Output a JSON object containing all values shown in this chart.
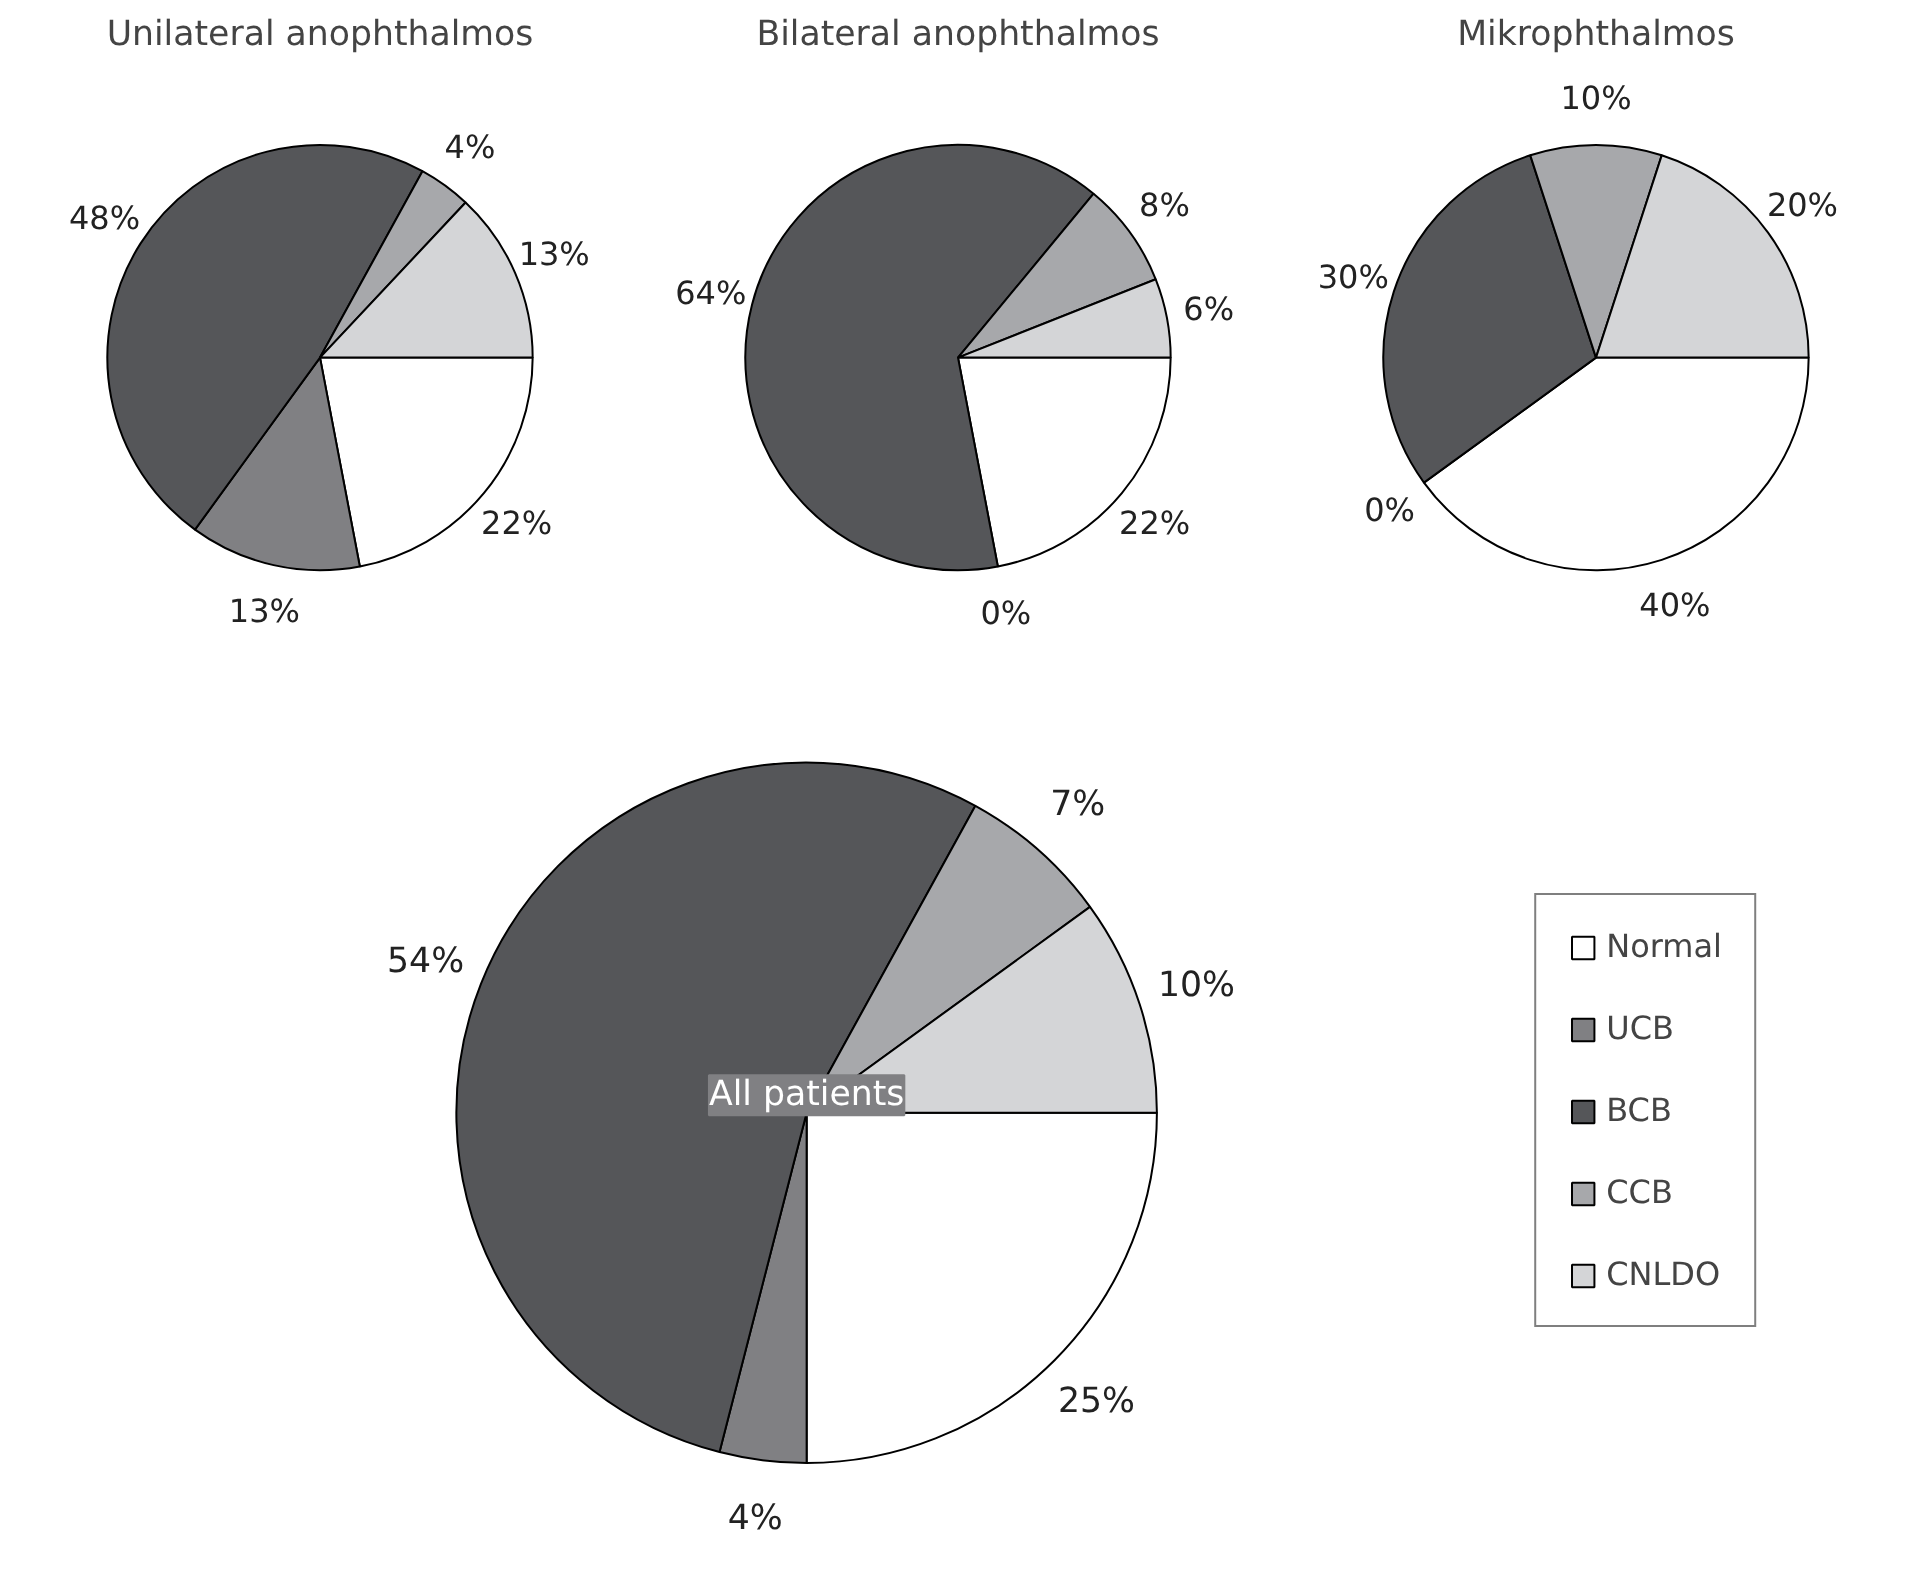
{
  "chart_data": [
    {
      "type": "pie",
      "title": "Unilateral anophthalmos",
      "categories": [
        null,
        null,
        null,
        null,
        null
      ],
      "values": [
        22,
        13,
        48,
        4,
        13
      ],
      "value_labels": [
        "22%",
        "13%",
        "48%",
        "4%",
        "13%"
      ],
      "colors": [
        "#ffffff",
        "#808083",
        "#555659",
        "#a7a8ab",
        "#d4d5d7"
      ]
    },
    {
      "type": "pie",
      "title": "Bilateral anophthalmos",
      "categories": [
        null,
        null,
        null,
        null,
        null
      ],
      "values": [
        22,
        0,
        64,
        8,
        6
      ],
      "value_labels": [
        "22%",
        "0%",
        "64%",
        "8%",
        "6%"
      ],
      "colors": [
        "#ffffff",
        "#808083",
        "#555659",
        "#a7a8ab",
        "#d4d5d7"
      ]
    },
    {
      "type": "pie",
      "title": "Mikrophthalmos",
      "categories": [
        null,
        null,
        null,
        null,
        null
      ],
      "values": [
        40,
        0,
        30,
        10,
        20
      ],
      "value_labels": [
        "40%",
        "0%",
        "30%",
        "10%",
        "20%"
      ],
      "colors": [
        "#ffffff",
        "#808083",
        "#555659",
        "#a7a8ab",
        "#d4d5d7"
      ]
    },
    {
      "type": "pie",
      "title": "All patients",
      "categories": [
        "Normal",
        "UCB",
        "BCB",
        "CCB",
        "CNLDO"
      ],
      "values": [
        25,
        4,
        54,
        7,
        10
      ],
      "value_labels": [
        "25%",
        "4%",
        "54%",
        "7%",
        "10%"
      ],
      "colors": [
        "#ffffff",
        "#808083",
        "#555659",
        "#a7a8ab",
        "#d4d5d7"
      ],
      "legend": "right"
    }
  ]
}
